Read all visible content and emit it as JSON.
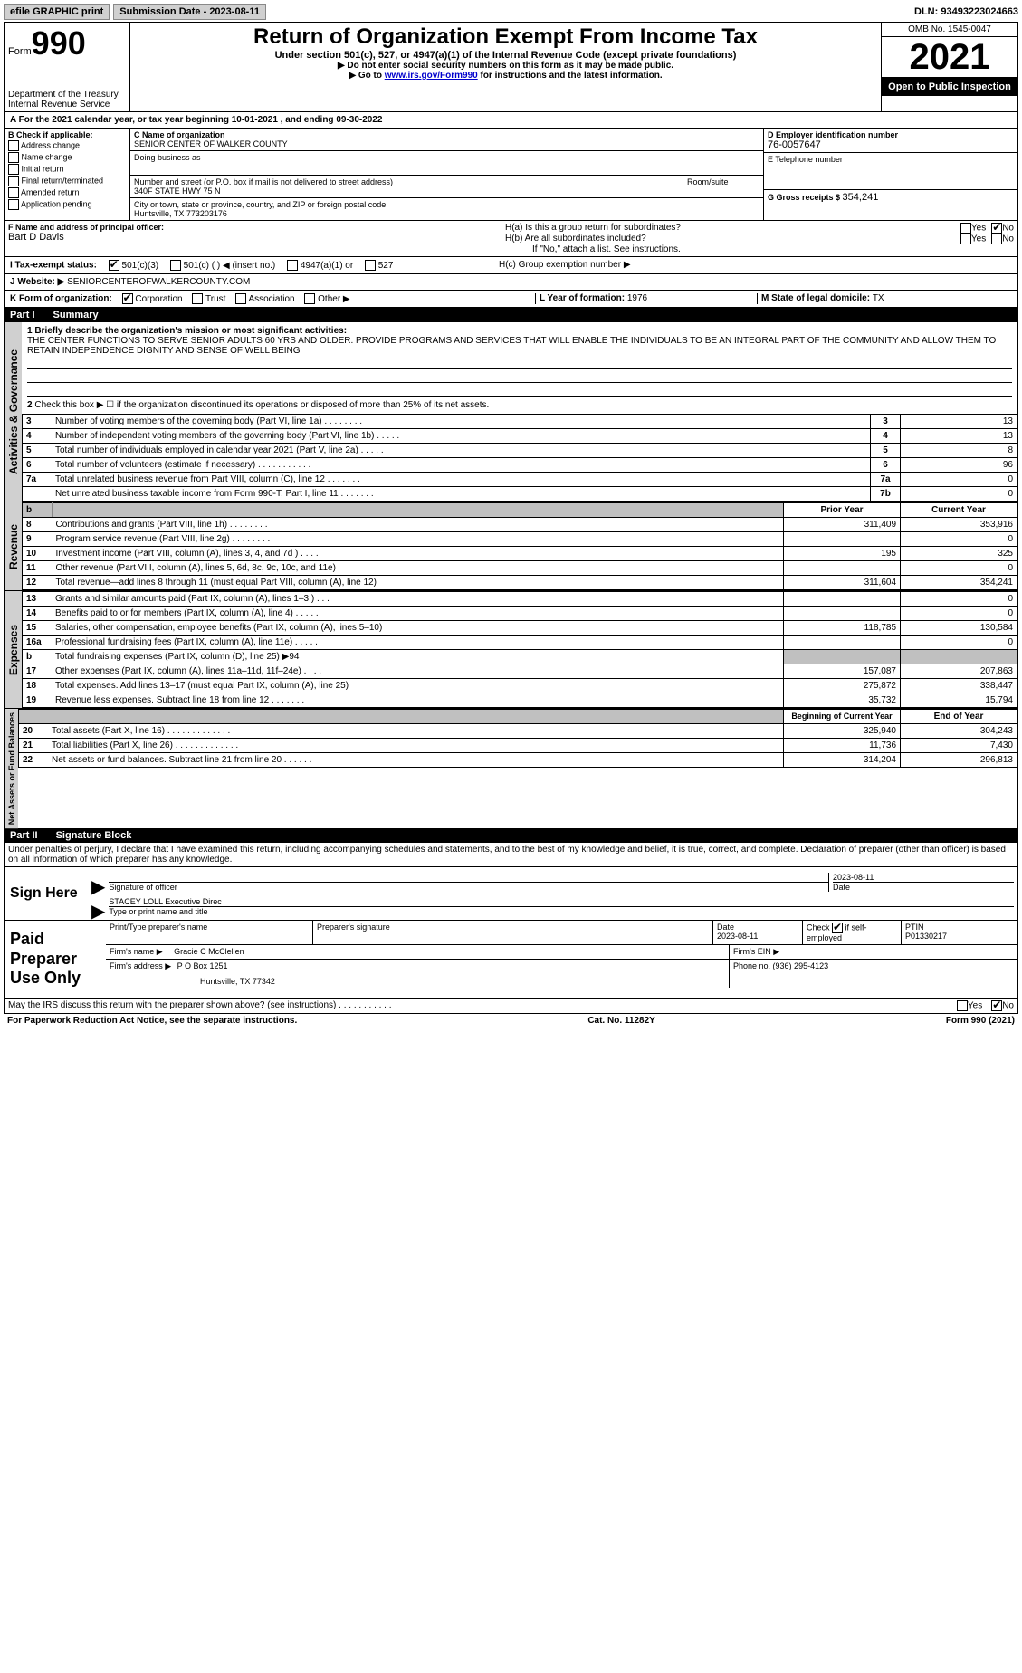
{
  "topbar": {
    "efile": "efile GRAPHIC print",
    "submission_label": "Submission Date - 2023-08-11",
    "dln": "DLN: 93493223024663"
  },
  "header": {
    "form_prefix": "Form",
    "form_num": "990",
    "title": "Return of Organization Exempt From Income Tax",
    "subtitle": "Under section 501(c), 527, or 4947(a)(1) of the Internal Revenue Code (except private foundations)",
    "note1": "▶ Do not enter social security numbers on this form as it may be made public.",
    "note2_pre": "▶ Go to ",
    "note2_link": "www.irs.gov/Form990",
    "note2_post": " for instructions and the latest information.",
    "dept": "Department of the Treasury",
    "irs": "Internal Revenue Service",
    "omb": "OMB No. 1545-0047",
    "year": "2021",
    "open": "Open to Public Inspection"
  },
  "line_a": {
    "text": "A For the 2021 calendar year, or tax year beginning 10-01-2021   , and ending 09-30-2022"
  },
  "block_b": {
    "label": "B Check if applicable:",
    "items": [
      "Address change",
      "Name change",
      "Initial return",
      "Final return/terminated",
      "Amended return",
      "Application pending"
    ]
  },
  "block_c": {
    "name_label": "C Name of organization",
    "name": "SENIOR CENTER OF WALKER COUNTY",
    "dba_label": "Doing business as",
    "dba": "",
    "addr_label": "Number and street (or P.O. box if mail is not delivered to street address)",
    "room_label": "Room/suite",
    "addr": "340F STATE HWY 75 N",
    "city_label": "City or town, state or province, country, and ZIP or foreign postal code",
    "city": "Huntsville, TX  773203176"
  },
  "block_d": {
    "label": "D Employer identification number",
    "value": "76-0057647",
    "e_label": "E Telephone number",
    "e_value": "",
    "g_label": "G Gross receipts $ ",
    "g_value": "354,241"
  },
  "block_f": {
    "label": "F Name and address of principal officer:",
    "value": "Bart D Davis"
  },
  "block_h": {
    "ha": "H(a)  Is this a group return for subordinates?",
    "hb": "H(b)  Are all subordinates included?",
    "hb_note": "If \"No,\" attach a list. See instructions.",
    "hc": "H(c)  Group exemption number ▶",
    "yes": "Yes",
    "no": "No"
  },
  "line_i": {
    "label": "I   Tax-exempt status:",
    "opts": [
      "501(c)(3)",
      "501(c) (  ) ◀ (insert no.)",
      "4947(a)(1) or",
      "527"
    ]
  },
  "line_j": {
    "label": "J   Website: ▶",
    "value": "SENIORCENTEROFWALKERCOUNTY.COM"
  },
  "line_k": {
    "label": "K Form of organization:",
    "opts": [
      "Corporation",
      "Trust",
      "Association",
      "Other ▶"
    ],
    "l_label": "L Year of formation: ",
    "l_value": "1976",
    "m_label": "M State of legal domicile: ",
    "m_value": "TX"
  },
  "part1": {
    "label": "Part I",
    "title": "Summary",
    "q1": "1  Briefly describe the organization's mission or most significant activities:",
    "mission": "THE CENTER FUNCTIONS TO SERVE SENIOR ADULTS 60 YRS AND OLDER. PROVIDE PROGRAMS AND SERVICES THAT WILL ENABLE THE INDIVIDUALS TO BE AN INTEGRAL PART OF THE COMMUNITY AND ALLOW THEM TO RETAIN INDEPENDENCE DIGNITY AND SENSE OF WELL BEING",
    "q2": "Check this box ▶ ☐  if the organization discontinued its operations or disposed of more than 25% of its net assets."
  },
  "governance_rows": [
    {
      "n": "3",
      "desc": "Number of voting members of the governing body (Part VI, line 1a)  .    .    .    .    .    .    .    .",
      "box": "3",
      "val": "13"
    },
    {
      "n": "4",
      "desc": "Number of independent voting members of the governing body (Part VI, line 1b)   .    .    .    .    .",
      "box": "4",
      "val": "13"
    },
    {
      "n": "5",
      "desc": "Total number of individuals employed in calendar year 2021 (Part V, line 2a)   .    .    .    .    .",
      "box": "5",
      "val": "8"
    },
    {
      "n": "6",
      "desc": "Total number of volunteers (estimate if necessary)   .    .    .    .    .    .    .    .    .    .    .",
      "box": "6",
      "val": "96"
    },
    {
      "n": "7a",
      "desc": "Total unrelated business revenue from Part VIII, column (C), line 12   .    .    .    .    .    .    .",
      "box": "7a",
      "val": "0"
    },
    {
      "n": "",
      "desc": "Net unrelated business taxable income from Form 990-T, Part I, line 11   .    .    .    .    .    .    .",
      "box": "7b",
      "val": "0"
    }
  ],
  "two_col_header": {
    "prior": "Prior Year",
    "current": "Current Year"
  },
  "revenue_rows": [
    {
      "n": "8",
      "desc": "Contributions and grants (Part VIII, line 1h)   .    .    .    .    .    .    .    .",
      "prior": "311,409",
      "current": "353,916"
    },
    {
      "n": "9",
      "desc": "Program service revenue (Part VIII, line 2g)   .    .    .    .    .    .    .    .",
      "prior": "",
      "current": "0"
    },
    {
      "n": "10",
      "desc": "Investment income (Part VIII, column (A), lines 3, 4, and 7d )   .    .    .    .",
      "prior": "195",
      "current": "325"
    },
    {
      "n": "11",
      "desc": "Other revenue (Part VIII, column (A), lines 5, 6d, 8c, 9c, 10c, and 11e)",
      "prior": "",
      "current": "0"
    },
    {
      "n": "12",
      "desc": "Total revenue—add lines 8 through 11 (must equal Part VIII, column (A), line 12)",
      "prior": "311,604",
      "current": "354,241"
    }
  ],
  "expense_rows": [
    {
      "n": "13",
      "desc": "Grants and similar amounts paid (Part IX, column (A), lines 1–3 )   .    .    .",
      "prior": "",
      "current": "0"
    },
    {
      "n": "14",
      "desc": "Benefits paid to or for members (Part IX, column (A), line 4)   .    .    .    .    .",
      "prior": "",
      "current": "0"
    },
    {
      "n": "15",
      "desc": "Salaries, other compensation, employee benefits (Part IX, column (A), lines 5–10)",
      "prior": "118,785",
      "current": "130,584"
    },
    {
      "n": "16a",
      "desc": "Professional fundraising fees (Part IX, column (A), line 11e)   .    .    .    .    .",
      "prior": "",
      "current": "0"
    },
    {
      "n": "b",
      "desc": "Total fundraising expenses (Part IX, column (D), line 25) ▶94",
      "prior": "SHADE",
      "current": "SHADE"
    },
    {
      "n": "17",
      "desc": "Other expenses (Part IX, column (A), lines 11a–11d, 11f–24e)   .    .    .    .",
      "prior": "157,087",
      "current": "207,863"
    },
    {
      "n": "18",
      "desc": "Total expenses. Add lines 13–17 (must equal Part IX, column (A), line 25)",
      "prior": "275,872",
      "current": "338,447"
    },
    {
      "n": "19",
      "desc": "Revenue less expenses. Subtract line 18 from line 12   .    .    .    .    .    .    .",
      "prior": "35,732",
      "current": "15,794"
    }
  ],
  "net_header": {
    "prior": "Beginning of Current Year",
    "current": "End of Year"
  },
  "net_rows": [
    {
      "n": "20",
      "desc": "Total assets (Part X, line 16)   .    .    .    .    .    .    .    .    .    .    .    .    .",
      "prior": "325,940",
      "current": "304,243"
    },
    {
      "n": "21",
      "desc": "Total liabilities (Part X, line 26)   .    .    .    .    .    .    .    .    .    .    .    .    .",
      "prior": "11,736",
      "current": "7,430"
    },
    {
      "n": "22",
      "desc": "Net assets or fund balances. Subtract line 21 from line 20   .    .    .    .    .    .",
      "prior": "314,204",
      "current": "296,813"
    }
  ],
  "part2": {
    "label": "Part II",
    "title": "Signature Block",
    "penalties": "Under penalties of perjury, I declare that I have examined this return, including accompanying schedules and statements, and to the best of my knowledge and belief, it is true, correct, and complete. Declaration of preparer (other than officer) is based on all information of which preparer has any knowledge."
  },
  "sign": {
    "label": "Sign Here",
    "sig_of_officer": "Signature of officer",
    "date": "2023-08-11",
    "date_label": "Date",
    "name": "STACEY LOLL  Executive Direc",
    "name_label": "Type or print name and title"
  },
  "prep": {
    "label": "Paid Preparer Use Only",
    "h1": "Print/Type preparer's name",
    "h2": "Preparer's signature",
    "h3_label": "Date",
    "h3": "2023-08-11",
    "h4_label": "Check",
    "h4_note": "if self-employed",
    "h5_label": "PTIN",
    "h5": "P01330217",
    "firm_name_label": "Firm's name    ▶",
    "firm_name": "Gracie C McClellen",
    "firm_ein_label": "Firm's EIN ▶",
    "firm_addr_label": "Firm's address ▶",
    "firm_addr1": "P O Box 1251",
    "firm_addr2": "Huntsville, TX  77342",
    "phone_label": "Phone no. ",
    "phone": "(936) 295-4123"
  },
  "may_irs": {
    "q": "May the IRS discuss this return with the preparer shown above? (see instructions)   .    .    .    .    .    .    .    .    .    .    .",
    "yes": "Yes",
    "no": "No"
  },
  "footer": {
    "left": "For Paperwork Reduction Act Notice, see the separate instructions.",
    "mid": "Cat. No. 11282Y",
    "right": "Form 990 (2021)"
  },
  "vtabs": {
    "gov": "Activities & Governance",
    "rev": "Revenue",
    "exp": "Expenses",
    "net": "Net Assets or Fund Balances"
  }
}
